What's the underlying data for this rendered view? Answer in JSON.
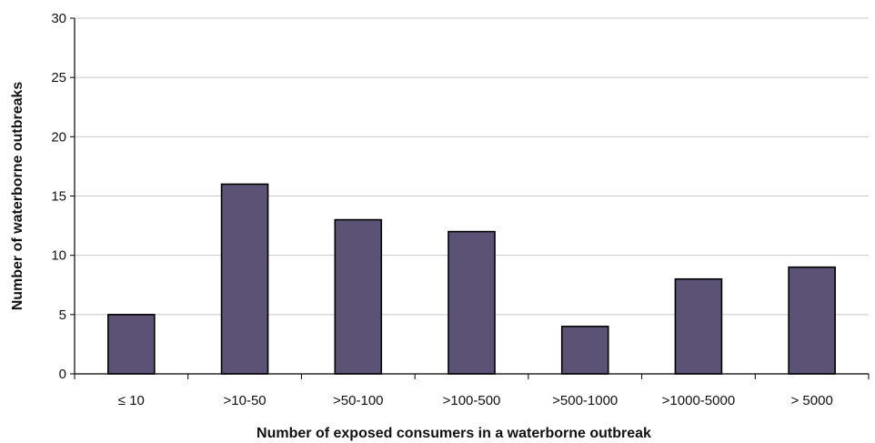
{
  "chart_data": {
    "type": "bar",
    "categories": [
      "≤ 10",
      ">10-50",
      ">50-100",
      ">100-500",
      ">500-1000",
      ">1000-5000",
      "> 5000"
    ],
    "values": [
      5,
      16,
      13,
      12,
      4,
      8,
      9
    ],
    "xlabel": "Number of exposed consumers in a waterborne outbreak",
    "ylabel": "Number of waterborne outbreaks",
    "ylim": [
      0,
      30
    ],
    "yticks": [
      0,
      5,
      10,
      15,
      20,
      25,
      30
    ],
    "grid": true,
    "bar_color": "#5b5275"
  }
}
